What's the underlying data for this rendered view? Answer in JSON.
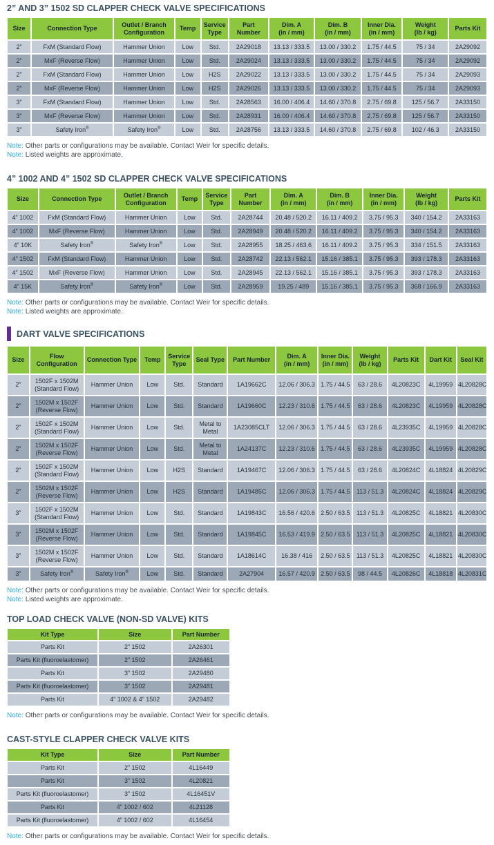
{
  "colors": {
    "header_green": "#8DC63F",
    "row_light": "#C4CDD7",
    "row_dark": "#9CA8B5",
    "title_text": "#3A5163",
    "note_label_cyan": "#2BACE2",
    "accent_purple": "#662D91"
  },
  "notes": {
    "label": "Note:",
    "contact": "Other parts or configurations may be available. Contact Weir for specific details.",
    "weights": "Listed weights are approximate."
  },
  "tables": {
    "sd_2_3": {
      "title": "2” AND 3” 1502 SD CLAPPER CHECK VALVE SPECIFICATIONS",
      "headers": [
        "Size",
        "Connection Type",
        "Outlet / Branch\nConfiguration",
        "Temp",
        "Service\nType",
        "Part\nNumber",
        "Dim. A\n(in / mm)",
        "Dim. B\n(in / mm)",
        "Inner Dia.\n(in / mm)",
        "Weight\n(lb / kg)",
        "Parts Kit"
      ],
      "rows": [
        [
          "2”",
          "FxM (Standard Flow)",
          "Hammer Union",
          "Low",
          "Std.",
          "2A29018",
          "13.13 / 333.5",
          "13.00 / 330.2",
          "1.75 / 44.5",
          "75 / 34",
          "2A29092"
        ],
        [
          "2”",
          "MxF (Reverse Flow)",
          "Hammer Union",
          "Low",
          "Std.",
          "2A29024",
          "13.13 / 333.5",
          "13.00 / 330.2",
          "1.75 / 44.5",
          "75 / 34",
          "2A29092"
        ],
        [
          "2”",
          "FxM (Standard Flow)",
          "Hammer Union",
          "Low",
          "H2S",
          "2A29022",
          "13.13 / 333.5",
          "13.00 / 330.2",
          "1.75 / 44.5",
          "75 / 34",
          "2A29093"
        ],
        [
          "2”",
          "MxF (Reverse Flow)",
          "Hammer Union",
          "Low",
          "H2S",
          "2A29026",
          "13.13 / 333.5",
          "13.00 / 330.2",
          "1.75 / 44.5",
          "75 / 34",
          "2A29093"
        ],
        [
          "3”",
          "FxM (Standard Flow)",
          "Hammer Union",
          "Low",
          "Std.",
          "2A28563",
          "16.00 / 406.4",
          "14.60 / 370.8",
          "2.75 / 69.8",
          "125 / 56.7",
          "2A33150"
        ],
        [
          "3”",
          "MxF (Reverse Flow)",
          "Hammer Union",
          "Low",
          "Std.",
          "2A28931",
          "16.00 / 406.4",
          "14.60 / 370.8",
          "2.75 / 69.8",
          "125 / 56.7",
          "2A33150"
        ],
        [
          "3”",
          "Safety Iron®",
          "Safety Iron®",
          "Low",
          "Std.",
          "2A28756",
          "13.13 / 333.5",
          "14.60 / 370.8",
          "2.75 / 69.8",
          "102 / 46.3",
          "2A33150"
        ]
      ]
    },
    "sd_4": {
      "title": "4” 1002 AND 4” 1502 SD CLAPPER CHECK VALVE SPECIFICATIONS",
      "headers": [
        "Size",
        "Connection Type",
        "Outlet / Branch\nConfiguration",
        "Temp",
        "Service\nType",
        "Part\nNumber",
        "Dim. A\n(in / mm)",
        "Dim. B\n(in / mm)",
        "Inner Dia.\n(in / mm)",
        "Weight\n(lb / kg)",
        "Parts Kit"
      ],
      "rows": [
        [
          "4” 1002",
          "FxM (Standard Flow)",
          "Hammer Union",
          "Low",
          "Std.",
          "2A28744",
          "20.48 / 520.2",
          "16.11 / 409.2",
          "3.75 / 95.3",
          "340 / 154.2",
          "2A33163"
        ],
        [
          "4” 1002",
          "MxF (Reverse Flow)",
          "Hammer Union",
          "Low",
          "Std.",
          "2A28949",
          "20.48 / 520.2",
          "16.11 / 409.2",
          "3.75 / 95.3",
          "340 / 154.2",
          "2A33163"
        ],
        [
          "4” 10K",
          "Safety Iron®",
          "Safety Iron®",
          "Low",
          "Std.",
          "2A28955",
          "18.25 / 463.6",
          "16.11 / 409.2",
          "3.75 / 95.3",
          "334 / 151.5",
          "2A33163"
        ],
        [
          "4” 1502",
          "FxM (Standard Flow)",
          "Hammer Union",
          "Low",
          "Std.",
          "2A28742",
          "22.13 / 562.1",
          "15.16 / 385.1",
          "3.75 / 95.3",
          "393 / 178.3",
          "2A33163"
        ],
        [
          "4” 1502",
          "MxF (Reverse Flow)",
          "Hammer Union",
          "Low",
          "Std.",
          "2A28945",
          "22.13 / 562.1",
          "15.16 / 385.1",
          "3.75 / 95.3",
          "393 / 178.3",
          "2A33163"
        ],
        [
          "4” 15K",
          "Safety Iron®",
          "Safety Iron®",
          "Low",
          "Std.",
          "2A28959",
          "19.25 / 489",
          "15.16 / 385.1",
          "3.75 / 95.3",
          "368 / 166.9",
          "2A33163"
        ]
      ]
    },
    "dart": {
      "title": "DART VALVE SPECIFICATIONS",
      "headers": [
        "Size",
        "Flow\nConfiguration",
        "Connection Type",
        "Temp",
        "Service\nType",
        "Seal Type",
        "Part Number",
        "Dim. A\n(in / mm)",
        "Inner Dia.\n(in / mm)",
        "Weight\n(lb / kg)",
        "Parts Kit",
        "Dart Kit",
        "Seal Kit"
      ],
      "rows": [
        [
          "2”",
          "1502F x 1502M\n(Standard Flow)",
          "Hammer Union",
          "Low",
          "Std.",
          "Standard",
          "1A19662C",
          "12.06 / 306.3",
          "1.75 / 44.5",
          "63 / 28.6",
          "4L20823C",
          "4L19959",
          "4L20828C"
        ],
        [
          "2”",
          "1502M x 1502F\n(Reverse Flow)",
          "Hammer Union",
          "Low",
          "Std.",
          "Standard",
          "1A19660C",
          "12.23 / 310.6",
          "1.75 / 44.5",
          "63 / 28.6",
          "4L20823C",
          "4L19959",
          "4L20828C"
        ],
        [
          "2”",
          "1502F x 1502M\n(Standard Flow)",
          "Hammer Union",
          "Low",
          "Std.",
          "Metal to\nMetal",
          "1A23085CLT",
          "12.06 / 306.3",
          "1.75 / 44.5",
          "63 / 28.6",
          "4L23935C",
          "4L19959",
          "4L20828C"
        ],
        [
          "2”",
          "1502M x 1502F\n(Reverse Flow)",
          "Hammer Union",
          "Low",
          "Std.",
          "Metal to\nMetal",
          "1A24137C",
          "12.23 / 310.6",
          "1.75 / 44.5",
          "63 / 28.6",
          "4L23935C",
          "4L19959",
          "4L20828C"
        ],
        [
          "2”",
          "1502F x 1502M\n(Standard Flow)",
          "Hammer Union",
          "Low",
          "H2S",
          "Standard",
          "1A19467C",
          "12.06 / 306.3",
          "1.75 / 44.5",
          "63 / 28.6",
          "4L20824C",
          "4L18824",
          "4L20829C"
        ],
        [
          "2”",
          "1502M x 1502F\n(Reverse Flow)",
          "Hammer Union",
          "Low",
          "H2S",
          "Standard",
          "1A19485C",
          "12.06 / 306.3",
          "1.75 / 44.5",
          "113 / 51.3",
          "4L20824C",
          "4L18824",
          "4L20829C"
        ],
        [
          "3”",
          "1502F x 1502M\n(Standard Flow)",
          "Hammer Union",
          "Low",
          "Std.",
          "Standard",
          "1A19843C",
          "16.56 / 420.6",
          "2.50 / 63.5",
          "113 / 51.3",
          "4L20825C",
          "4L18821",
          "4L20830C"
        ],
        [
          "3”",
          "1502M x 1502F\n(Reverse Flow)",
          "Hammer Union",
          "Low",
          "Std.",
          "Standard",
          "1A19845C",
          "16.53 / 419.9",
          "2.50 / 63.5",
          "113 / 51.3",
          "4L20825C",
          "4L18821",
          "4L20830C"
        ],
        [
          "3”",
          "1502M x 1502F\n(Reverse Flow)",
          "Hammer Union",
          "Low",
          "Std.",
          "Standard",
          "1A18614C",
          "16.38 / 416",
          "2.50 / 63.5",
          "113 / 51.3",
          "4L20825C",
          "4L18821",
          "4L20830C"
        ],
        [
          "3”",
          "Safety Iron®",
          "Safety Iron®",
          "Low",
          "Std.",
          "Standard",
          "2A27904",
          "16.57 / 420.9",
          "2.50 / 63.5",
          "98 / 44.5",
          "4L20826C",
          "4L18818",
          "4L20831C"
        ]
      ]
    },
    "top_load": {
      "title": "TOP LOAD CHECK VALVE (NON-SD VALVE) KITS",
      "headers": [
        "Kit Type",
        "Size",
        "Part Number"
      ],
      "rows": [
        [
          "Parts Kit",
          "2” 1502",
          "2A26301"
        ],
        [
          "Parts Kit (fluoroelastomer)",
          "2” 1502",
          "2A26461"
        ],
        [
          "Parts Kit",
          "3” 1502",
          "2A29480"
        ],
        [
          "Parts Kit (fluoroelastomer)",
          "3” 1502",
          "2A29481"
        ],
        [
          "Parts Kit",
          "4” 1002 & 4” 1502",
          "2A29482"
        ]
      ]
    },
    "cast": {
      "title": "CAST-STYLE CLAPPER CHECK VALVE KITS",
      "headers": [
        "Kit Type",
        "Size",
        "Part Number"
      ],
      "rows": [
        [
          "Parts Kit",
          "2” 1502",
          "4L16449"
        ],
        [
          "Parts Kit",
          "3” 1502",
          "4L20821"
        ],
        [
          "Parts Kit (fluoroelastomer)",
          "3” 1502",
          "4L16451V"
        ],
        [
          "Parts Kit",
          "4” 1002 / 602",
          "4L21128"
        ],
        [
          "Parts Kit (fluoroelastomer)",
          "4” 1002 / 602",
          "4L16454"
        ]
      ]
    }
  }
}
